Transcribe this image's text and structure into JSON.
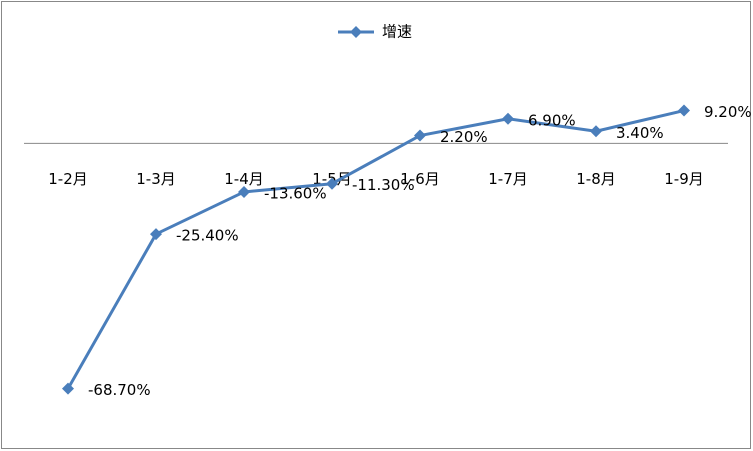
{
  "chart_data": {
    "type": "line",
    "categories": [
      "1-2月",
      "1-3月",
      "1-4月",
      "1-5月",
      "1-6月",
      "1-7月",
      "1-8月",
      "1-9月"
    ],
    "series": [
      {
        "name": "增速",
        "color": "#4a7ebb",
        "values": [
          -68.7,
          -25.4,
          -13.6,
          -11.3,
          2.2,
          6.9,
          3.4,
          9.2
        ],
        "value_labels": [
          "-68.70%",
          "-25.40%",
          "-13.60%",
          "-11.30%",
          "2.20%",
          "6.90%",
          "3.40%",
          "9.20%"
        ]
      }
    ],
    "ylim": [
      -80,
      20
    ],
    "legend": "top"
  }
}
